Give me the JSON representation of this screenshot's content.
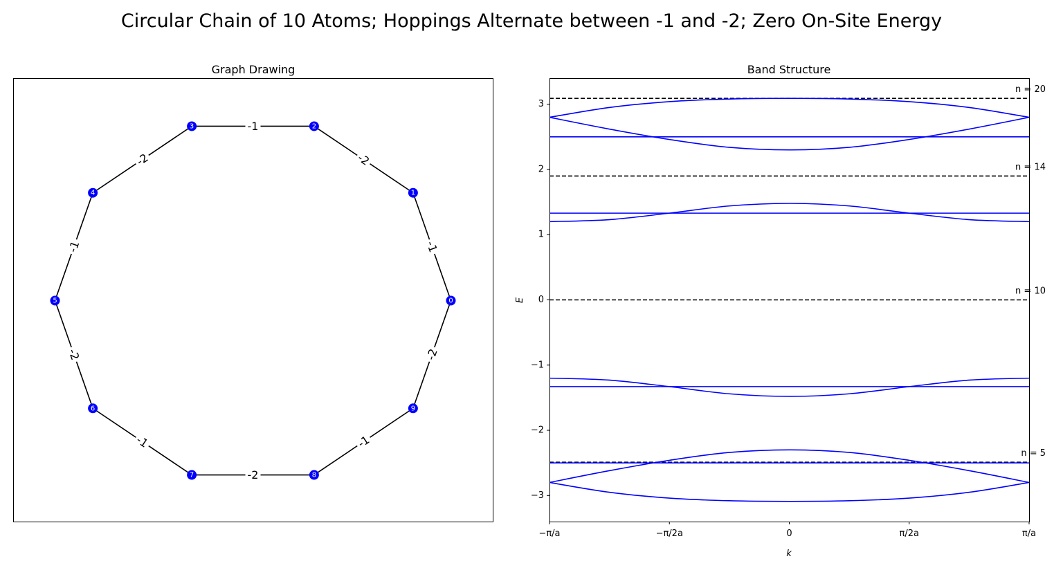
{
  "figure_title": "Circular Chain of 10 Atoms; Hoppings Alternate between -1 and -2; Zero On-Site Energy",
  "colors": {
    "node": "#0000ff",
    "band": "#0000ff",
    "edge": "#000000",
    "level": "#000000"
  },
  "chart_data": [
    {
      "type": "graph",
      "title": "Graph Drawing",
      "layout": "circular",
      "nodes": [
        "0",
        "1",
        "2",
        "3",
        "4",
        "5",
        "6",
        "7",
        "8",
        "9"
      ],
      "edges": [
        {
          "source": "0",
          "target": "1",
          "label": "-1"
        },
        {
          "source": "1",
          "target": "2",
          "label": "-2"
        },
        {
          "source": "2",
          "target": "3",
          "label": "-1"
        },
        {
          "source": "3",
          "target": "4",
          "label": "-2"
        },
        {
          "source": "4",
          "target": "5",
          "label": "-1"
        },
        {
          "source": "5",
          "target": "6",
          "label": "-2"
        },
        {
          "source": "6",
          "target": "7",
          "label": "-1"
        },
        {
          "source": "7",
          "target": "8",
          "label": "-2"
        },
        {
          "source": "8",
          "target": "9",
          "label": "-1"
        },
        {
          "source": "9",
          "target": "0",
          "label": "-2"
        }
      ]
    },
    {
      "type": "line",
      "title": "Band Structure",
      "xlabel": "k",
      "ylabel": "E",
      "xlim": [
        -3.1416,
        3.1416
      ],
      "ylim": [
        -3.4,
        3.4
      ],
      "yticks": [
        -3,
        -2,
        -1,
        0,
        1,
        2,
        3
      ],
      "xticks": [
        {
          "value": -3.1416,
          "label": "−π/a"
        },
        {
          "value": -1.5708,
          "label": "−π/2a"
        },
        {
          "value": 0,
          "label": "0"
        },
        {
          "value": 1.5708,
          "label": "π/2a"
        },
        {
          "value": 3.1416,
          "label": "π/a"
        }
      ],
      "series": [
        {
          "values": [
            [
              -3.1416,
              2.8
            ],
            [
              -2.36,
              2.95
            ],
            [
              -1.57,
              3.04
            ],
            [
              -0.79,
              3.08
            ],
            [
              0,
              3.09
            ],
            [
              0.79,
              3.08
            ],
            [
              1.57,
              3.04
            ],
            [
              2.36,
              2.95
            ],
            [
              3.1416,
              2.8
            ]
          ]
        },
        {
          "values": [
            [
              -3.1416,
              2.8
            ],
            [
              -2.36,
              2.62
            ],
            [
              -1.57,
              2.46
            ],
            [
              -0.79,
              2.34
            ],
            [
              0,
              2.3
            ],
            [
              0.79,
              2.34
            ],
            [
              1.57,
              2.46
            ],
            [
              2.36,
              2.62
            ],
            [
              3.1416,
              2.8
            ]
          ]
        },
        {
          "values": [
            [
              -3.1416,
              2.5
            ],
            [
              3.1416,
              2.5
            ]
          ]
        },
        {
          "values": [
            [
              -3.1416,
              1.2
            ],
            [
              -2.36,
              1.23
            ],
            [
              -1.57,
              1.33
            ],
            [
              -0.79,
              1.44
            ],
            [
              0,
              1.48
            ],
            [
              0.79,
              1.44
            ],
            [
              1.57,
              1.33
            ],
            [
              2.36,
              1.23
            ],
            [
              3.1416,
              1.2
            ]
          ]
        },
        {
          "values": [
            [
              -3.1416,
              1.33
            ],
            [
              3.1416,
              1.33
            ]
          ]
        },
        {
          "values": [
            [
              -3.1416,
              -1.2
            ],
            [
              -2.36,
              -1.23
            ],
            [
              -1.57,
              -1.33
            ],
            [
              -0.79,
              -1.44
            ],
            [
              0,
              -1.48
            ],
            [
              0.79,
              -1.44
            ],
            [
              1.57,
              -1.33
            ],
            [
              2.36,
              -1.23
            ],
            [
              3.1416,
              -1.2
            ]
          ]
        },
        {
          "values": [
            [
              -3.1416,
              -1.33
            ],
            [
              3.1416,
              -1.33
            ]
          ]
        },
        {
          "values": [
            [
              -3.1416,
              -2.8
            ],
            [
              -2.36,
              -2.62
            ],
            [
              -1.57,
              -2.46
            ],
            [
              -0.79,
              -2.34
            ],
            [
              0,
              -2.3
            ],
            [
              0.79,
              -2.34
            ],
            [
              1.57,
              -2.46
            ],
            [
              2.36,
              -2.62
            ],
            [
              3.1416,
              -2.8
            ]
          ]
        },
        {
          "values": [
            [
              -3.1416,
              -2.8
            ],
            [
              -2.36,
              -2.95
            ],
            [
              -1.57,
              -3.04
            ],
            [
              -0.79,
              -3.08
            ],
            [
              0,
              -3.09
            ],
            [
              0.79,
              -3.08
            ],
            [
              1.57,
              -3.04
            ],
            [
              2.36,
              -2.95
            ],
            [
              3.1416,
              -2.8
            ]
          ]
        },
        {
          "values": [
            [
              -3.1416,
              -2.5
            ],
            [
              3.1416,
              -2.5
            ]
          ]
        }
      ],
      "levels": [
        {
          "y": 3.09,
          "label": "n = 20"
        },
        {
          "y": 1.9,
          "label": "n = 14"
        },
        {
          "y": 0.0,
          "label": "n = 10"
        },
        {
          "y": -2.49,
          "label": "n = 5"
        }
      ]
    }
  ]
}
